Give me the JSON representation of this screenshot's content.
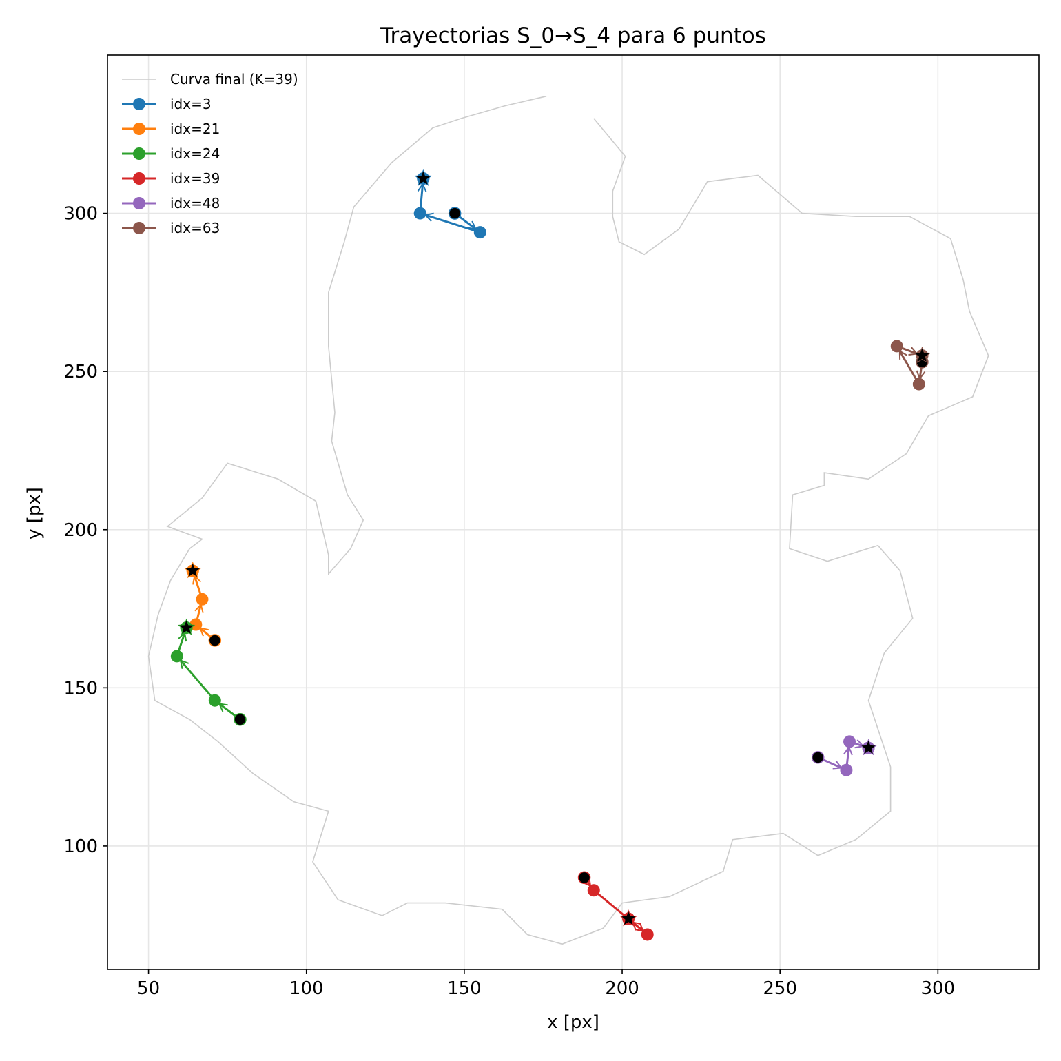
{
  "chart_data": {
    "type": "line",
    "title": "Trayectorias S_0→S_4 para 6 puntos",
    "xlabel": "x [px]",
    "ylabel": "y [px]",
    "xlim": [
      37,
      332
    ],
    "ylim": [
      61,
      350
    ],
    "x_ticks": [
      50,
      100,
      150,
      200,
      250,
      300
    ],
    "y_ticks": [
      100,
      150,
      200,
      250,
      300
    ],
    "grid": true,
    "legend_position": "top-left",
    "curve": {
      "name": "Curva final (K=39)",
      "color": "#cccccc",
      "points": [
        [
          176,
          337
        ],
        [
          163,
          334
        ],
        [
          149,
          330
        ],
        [
          140,
          327
        ],
        [
          127,
          316
        ],
        [
          115,
          302
        ],
        [
          112,
          291
        ],
        [
          107,
          275
        ],
        [
          107,
          258
        ],
        [
          109,
          237
        ],
        [
          108,
          228
        ],
        [
          113,
          211
        ],
        [
          118,
          203
        ],
        [
          114,
          194
        ],
        [
          107,
          186
        ],
        [
          107,
          192
        ],
        [
          103,
          209
        ],
        [
          91,
          216
        ],
        [
          75,
          221
        ],
        [
          67,
          210
        ],
        [
          56,
          201
        ],
        [
          67,
          197
        ],
        [
          63,
          194
        ],
        [
          57,
          184
        ],
        [
          53,
          173
        ],
        [
          50,
          160
        ],
        [
          52,
          146
        ],
        [
          63,
          140
        ],
        [
          72,
          133
        ],
        [
          83,
          123
        ],
        [
          96,
          114
        ],
        [
          107,
          111
        ],
        [
          102,
          95
        ],
        [
          110,
          83
        ],
        [
          124,
          78
        ],
        [
          132,
          82
        ],
        [
          144,
          82
        ],
        [
          162,
          80
        ],
        [
          170,
          72
        ],
        [
          181,
          69
        ],
        [
          194,
          74
        ],
        [
          200,
          82
        ],
        [
          215,
          84
        ],
        [
          232,
          92
        ],
        [
          235,
          102
        ],
        [
          251,
          104
        ],
        [
          262,
          97
        ],
        [
          274,
          102
        ],
        [
          285,
          111
        ],
        [
          285,
          125
        ],
        [
          278,
          146
        ],
        [
          283,
          161
        ],
        [
          292,
          172
        ],
        [
          288,
          187
        ],
        [
          281,
          195
        ],
        [
          265,
          190
        ],
        [
          253,
          194
        ],
        [
          254,
          211
        ],
        [
          264,
          214
        ],
        [
          264,
          218
        ],
        [
          278,
          216
        ],
        [
          290,
          224
        ],
        [
          297,
          236
        ],
        [
          311,
          242
        ],
        [
          316,
          255
        ],
        [
          310,
          269
        ],
        [
          308,
          279
        ],
        [
          304,
          292
        ],
        [
          291,
          299
        ],
        [
          274,
          299
        ],
        [
          257,
          300
        ],
        [
          243,
          312
        ],
        [
          227,
          310
        ],
        [
          218,
          295
        ],
        [
          207,
          287
        ],
        [
          199,
          291
        ],
        [
          197,
          299
        ],
        [
          197,
          307
        ],
        [
          201,
          318
        ],
        [
          191,
          330
        ]
      ]
    },
    "series": [
      {
        "name": "idx=3",
        "color": "#1f77b4",
        "points": [
          [
            147,
            300
          ],
          [
            155,
            294
          ],
          [
            136,
            300
          ],
          [
            137,
            311
          ],
          [
            137,
            311
          ]
        ]
      },
      {
        "name": "idx=21",
        "color": "#ff7f0e",
        "points": [
          [
            71,
            165
          ],
          [
            65,
            170
          ],
          [
            67,
            178
          ],
          [
            64,
            187
          ],
          [
            64,
            187
          ]
        ]
      },
      {
        "name": "idx=24",
        "color": "#2ca02c",
        "points": [
          [
            79,
            140
          ],
          [
            71,
            146
          ],
          [
            59,
            160
          ],
          [
            62,
            169
          ],
          [
            62,
            169
          ]
        ]
      },
      {
        "name": "idx=39",
        "color": "#d62728",
        "points": [
          [
            188,
            90
          ],
          [
            191,
            86
          ],
          [
            208,
            72
          ],
          [
            202,
            77
          ],
          [
            202,
            77
          ]
        ]
      },
      {
        "name": "idx=48",
        "color": "#9467bd",
        "points": [
          [
            262,
            128
          ],
          [
            271,
            124
          ],
          [
            272,
            133
          ],
          [
            278,
            131
          ],
          [
            278,
            131
          ]
        ]
      },
      {
        "name": "idx=63",
        "color": "#8c564b",
        "points": [
          [
            295,
            253
          ],
          [
            294,
            246
          ],
          [
            287,
            258
          ],
          [
            295,
            255
          ],
          [
            295,
            255
          ]
        ]
      }
    ]
  }
}
